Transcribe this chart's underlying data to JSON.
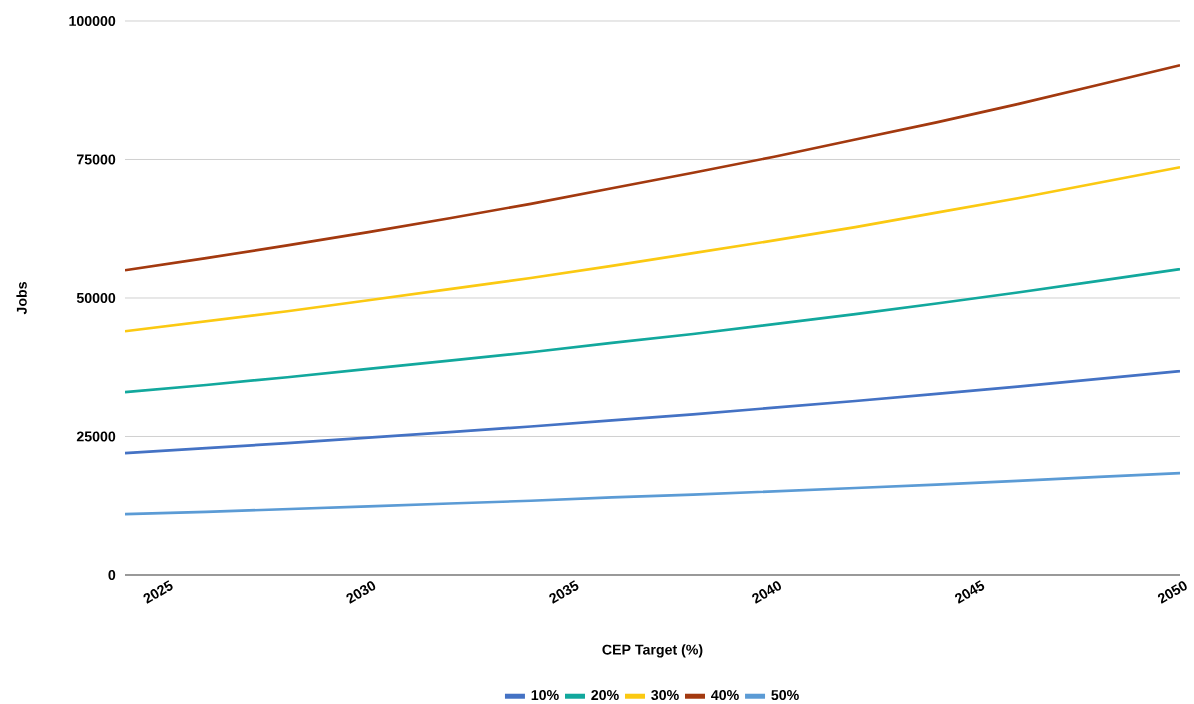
{
  "chart_data": {
    "type": "line",
    "xlabel": "CEP Target (%)",
    "ylabel": "Jobs",
    "x": [
      2024,
      2026,
      2028,
      2030,
      2032,
      2034,
      2036,
      2038,
      2040,
      2042,
      2044,
      2046,
      2048,
      2050
    ],
    "series": [
      {
        "name": "10%",
        "color": "#4472c4",
        "values": [
          22000,
          22900,
          23800,
          24800,
          25800,
          26800,
          27900,
          29000,
          30200,
          31400,
          32700,
          34000,
          35400,
          36800
        ]
      },
      {
        "name": "20%",
        "color": "#12a89d",
        "values": [
          33000,
          34300,
          35700,
          37200,
          38700,
          40200,
          41900,
          43500,
          45300,
          47100,
          49000,
          51000,
          53100,
          55200
        ]
      },
      {
        "name": "30%",
        "color": "#fbc912",
        "values": [
          44000,
          45800,
          47600,
          49600,
          51600,
          53600,
          55800,
          58100,
          60400,
          62800,
          65400,
          68000,
          70800,
          73600
        ]
      },
      {
        "name": "40%",
        "color": "#a3390f",
        "values": [
          55000,
          57200,
          59500,
          61900,
          64400,
          67000,
          69800,
          72600,
          75500,
          78600,
          81700,
          85000,
          88500,
          92000
        ]
      },
      {
        "name": "50%",
        "color": "#5b9bd5",
        "values": [
          11000,
          11400,
          11900,
          12400,
          12900,
          13400,
          14000,
          14500,
          15100,
          15700,
          16300,
          17000,
          17700,
          18400
        ]
      }
    ],
    "xlim": [
      2024,
      2050
    ],
    "ylim": [
      0,
      100000
    ],
    "xticks": [
      2025,
      2030,
      2035,
      2040,
      2045,
      2050
    ],
    "yticks": [
      0,
      25000,
      50000,
      75000,
      100000
    ],
    "grid": "y",
    "legend": "bottom"
  }
}
